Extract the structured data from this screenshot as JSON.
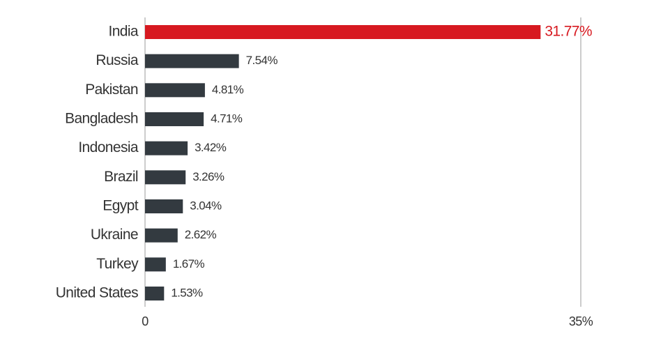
{
  "chart_data": {
    "type": "bar",
    "orientation": "horizontal",
    "categories": [
      "India",
      "Russia",
      "Pakistan",
      "Bangladesh",
      "Indonesia",
      "Brazil",
      "Egypt",
      "Ukraine",
      "Turkey",
      "United States"
    ],
    "values": [
      31.77,
      7.54,
      4.81,
      4.71,
      3.42,
      3.26,
      3.04,
      2.62,
      1.67,
      1.53
    ],
    "value_labels": [
      "31.77%",
      "7.54%",
      "4.81%",
      "4.71%",
      "3.42%",
      "3.26%",
      "3.04%",
      "2.62%",
      "1.67%",
      "1.53%"
    ],
    "colors": [
      "#d71920",
      "#333a40",
      "#333a40",
      "#333a40",
      "#333a40",
      "#333a40",
      "#333a40",
      "#333a40",
      "#333a40",
      "#333a40"
    ],
    "xlim": [
      0,
      35
    ],
    "xticks": [
      0,
      {
        "value": 35,
        "label": "35%"
      }
    ],
    "grid": true
  }
}
